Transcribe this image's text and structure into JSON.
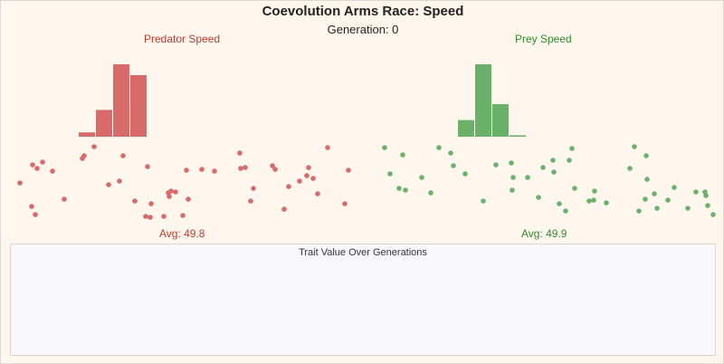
{
  "title": "Coevolution Arms Race: Speed",
  "generation_text": "Generation: 0",
  "colors": {
    "predator": "#d96a6a",
    "predator_text": "#c0392b",
    "prey": "#6ab26a",
    "prey_text": "#2e8b2e",
    "background": "#fff7ee",
    "trend_background": "#f9f8fd"
  },
  "predator": {
    "label": "Predator Speed",
    "avg_text": "Avg: 49.8",
    "histogram": [
      0.06,
      0.37,
      1.0,
      0.85
    ]
  },
  "prey": {
    "label": "Prey Speed",
    "avg_text": "Avg: 49.9",
    "histogram": [
      0.23,
      1.0,
      0.45,
      0.02
    ]
  },
  "trend_chart": {
    "title": "Trait Value Over Generations"
  }
}
